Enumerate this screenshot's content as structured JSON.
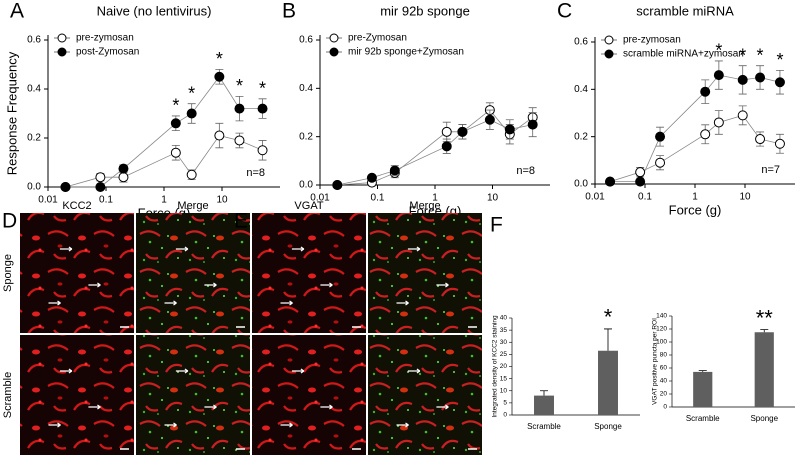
{
  "chart_data": [
    {
      "type": "line",
      "panel": "A",
      "title": "Naive (no lentivirus)",
      "xlabel": "Force (g)",
      "ylabel": "Response Frequency",
      "xscale": "log",
      "xlim": [
        0.01,
        100
      ],
      "xticks": [
        0.01,
        0.1,
        1,
        10
      ],
      "ylim": [
        0,
        0.6
      ],
      "yticks": [
        {
          "value": 0,
          "label": "0.0"
        },
        0.2,
        0.4,
        0.6
      ],
      "x": [
        0.02,
        0.08,
        0.2,
        1.6,
        3,
        9,
        20,
        50
      ],
      "series": [
        {
          "name": "pre-zymosan",
          "color": "#000000",
          "marker": "open",
          "values": [
            0,
            0.04,
            0.04,
            0.14,
            0.05,
            0.21,
            0.19,
            0.15
          ],
          "errors": [
            0,
            0.015,
            0.02,
            0.03,
            0.02,
            0.05,
            0.03,
            0.04
          ]
        },
        {
          "name": "post-Zymosan",
          "color": "#000000",
          "marker": "filled",
          "values": [
            0,
            0,
            0.075,
            0.26,
            0.3,
            0.45,
            0.32,
            0.32
          ],
          "errors": [
            0,
            0,
            0.015,
            0.03,
            0.04,
            0.03,
            0.05,
            0.04
          ],
          "significance": [
            null,
            null,
            null,
            "*",
            "*",
            "*",
            "*",
            "*"
          ]
        }
      ],
      "note": "n=8"
    },
    {
      "type": "line",
      "panel": "B",
      "title": "mir 92b sponge",
      "xlabel": "Force (g)",
      "xscale": "log",
      "xlim": [
        0.01,
        100
      ],
      "xticks": [
        0.01,
        0.1,
        1,
        10
      ],
      "ylim": [
        0,
        0.6
      ],
      "yticks": [
        {
          "value": 0,
          "label": "0.0"
        },
        0.2,
        0.4,
        0.6
      ],
      "x": [
        0.02,
        0.08,
        0.2,
        1.6,
        3,
        9,
        20,
        50
      ],
      "series": [
        {
          "name": "pre-Zymosan",
          "color": "#000000",
          "marker": "open",
          "values": [
            0,
            0.01,
            0.05,
            0.22,
            0.22,
            0.31,
            0.21,
            0.28
          ],
          "errors": [
            0,
            0.01,
            0.02,
            0.04,
            0.03,
            0.03,
            0.04,
            0.04
          ]
        },
        {
          "name": "mir 92b sponge+Zymosan",
          "color": "#000000",
          "marker": "filled",
          "values": [
            0,
            0.03,
            0.06,
            0.16,
            0.22,
            0.27,
            0.23,
            0.25
          ],
          "errors": [
            0,
            0.01,
            0.02,
            0.03,
            0.03,
            0.04,
            0.04,
            0.05
          ]
        }
      ],
      "note": "n=8"
    },
    {
      "type": "line",
      "panel": "C",
      "title": "scramble miRNA",
      "xlabel": "Force (g)",
      "xscale": "log",
      "xlim": [
        0.01,
        100
      ],
      "xticks": [
        0.01,
        0.1,
        1,
        10
      ],
      "ylim": [
        0,
        0.6
      ],
      "yticks": [
        {
          "value": 0,
          "label": "0.0"
        },
        0.2,
        0.4,
        0.6
      ],
      "x": [
        0.02,
        0.08,
        0.2,
        1.6,
        3,
        9,
        20,
        50
      ],
      "series": [
        {
          "name": "pre-zymosan",
          "color": "#000000",
          "marker": "open",
          "values": [
            0.01,
            0.05,
            0.09,
            0.21,
            0.26,
            0.29,
            0.19,
            0.17
          ],
          "errors": [
            0.005,
            0.02,
            0.03,
            0.04,
            0.05,
            0.04,
            0.03,
            0.04
          ]
        },
        {
          "name": "scramble miRNA+zymosan",
          "color": "#000000",
          "marker": "filled",
          "values": [
            0.01,
            0.01,
            0.2,
            0.39,
            0.46,
            0.44,
            0.45,
            0.43
          ],
          "errors": [
            0.005,
            0.005,
            0.04,
            0.05,
            0.06,
            0.06,
            0.05,
            0.05
          ],
          "significance": [
            null,
            null,
            null,
            null,
            "*",
            "*",
            "*",
            "*"
          ]
        }
      ],
      "note": "n=7"
    },
    {
      "type": "bar",
      "panel": "F",
      "ylabel": "Integrated density of KCC2 staining",
      "categories": [
        "Scramble",
        "Sponge"
      ],
      "values": [
        8,
        26.5
      ],
      "errors": [
        2,
        9
      ],
      "color": "#5f5f5f",
      "ylim": [
        0,
        40
      ],
      "yticks": [
        0,
        5,
        10,
        15,
        20,
        25,
        30,
        35,
        40
      ],
      "significance": [
        null,
        "*"
      ]
    },
    {
      "type": "bar",
      "ylabel": "VGAT positive puncta per ROI",
      "categories": [
        "Scramble",
        "Sponge"
      ],
      "values": [
        54,
        115
      ],
      "errors": [
        2,
        4
      ],
      "color": "#5f5f5f",
      "ylim": [
        0,
        140
      ],
      "yticks": [
        0,
        20,
        40,
        60,
        80,
        100,
        120,
        140
      ],
      "significance": [
        null,
        "**"
      ]
    }
  ],
  "images": [
    {
      "panel": "D",
      "columns": [
        "KCC2",
        "Merge"
      ]
    },
    {
      "panel": "E",
      "columns": [
        "VGAT",
        "Merge"
      ]
    }
  ],
  "rows": [
    "Sponge",
    "Scramble"
  ]
}
